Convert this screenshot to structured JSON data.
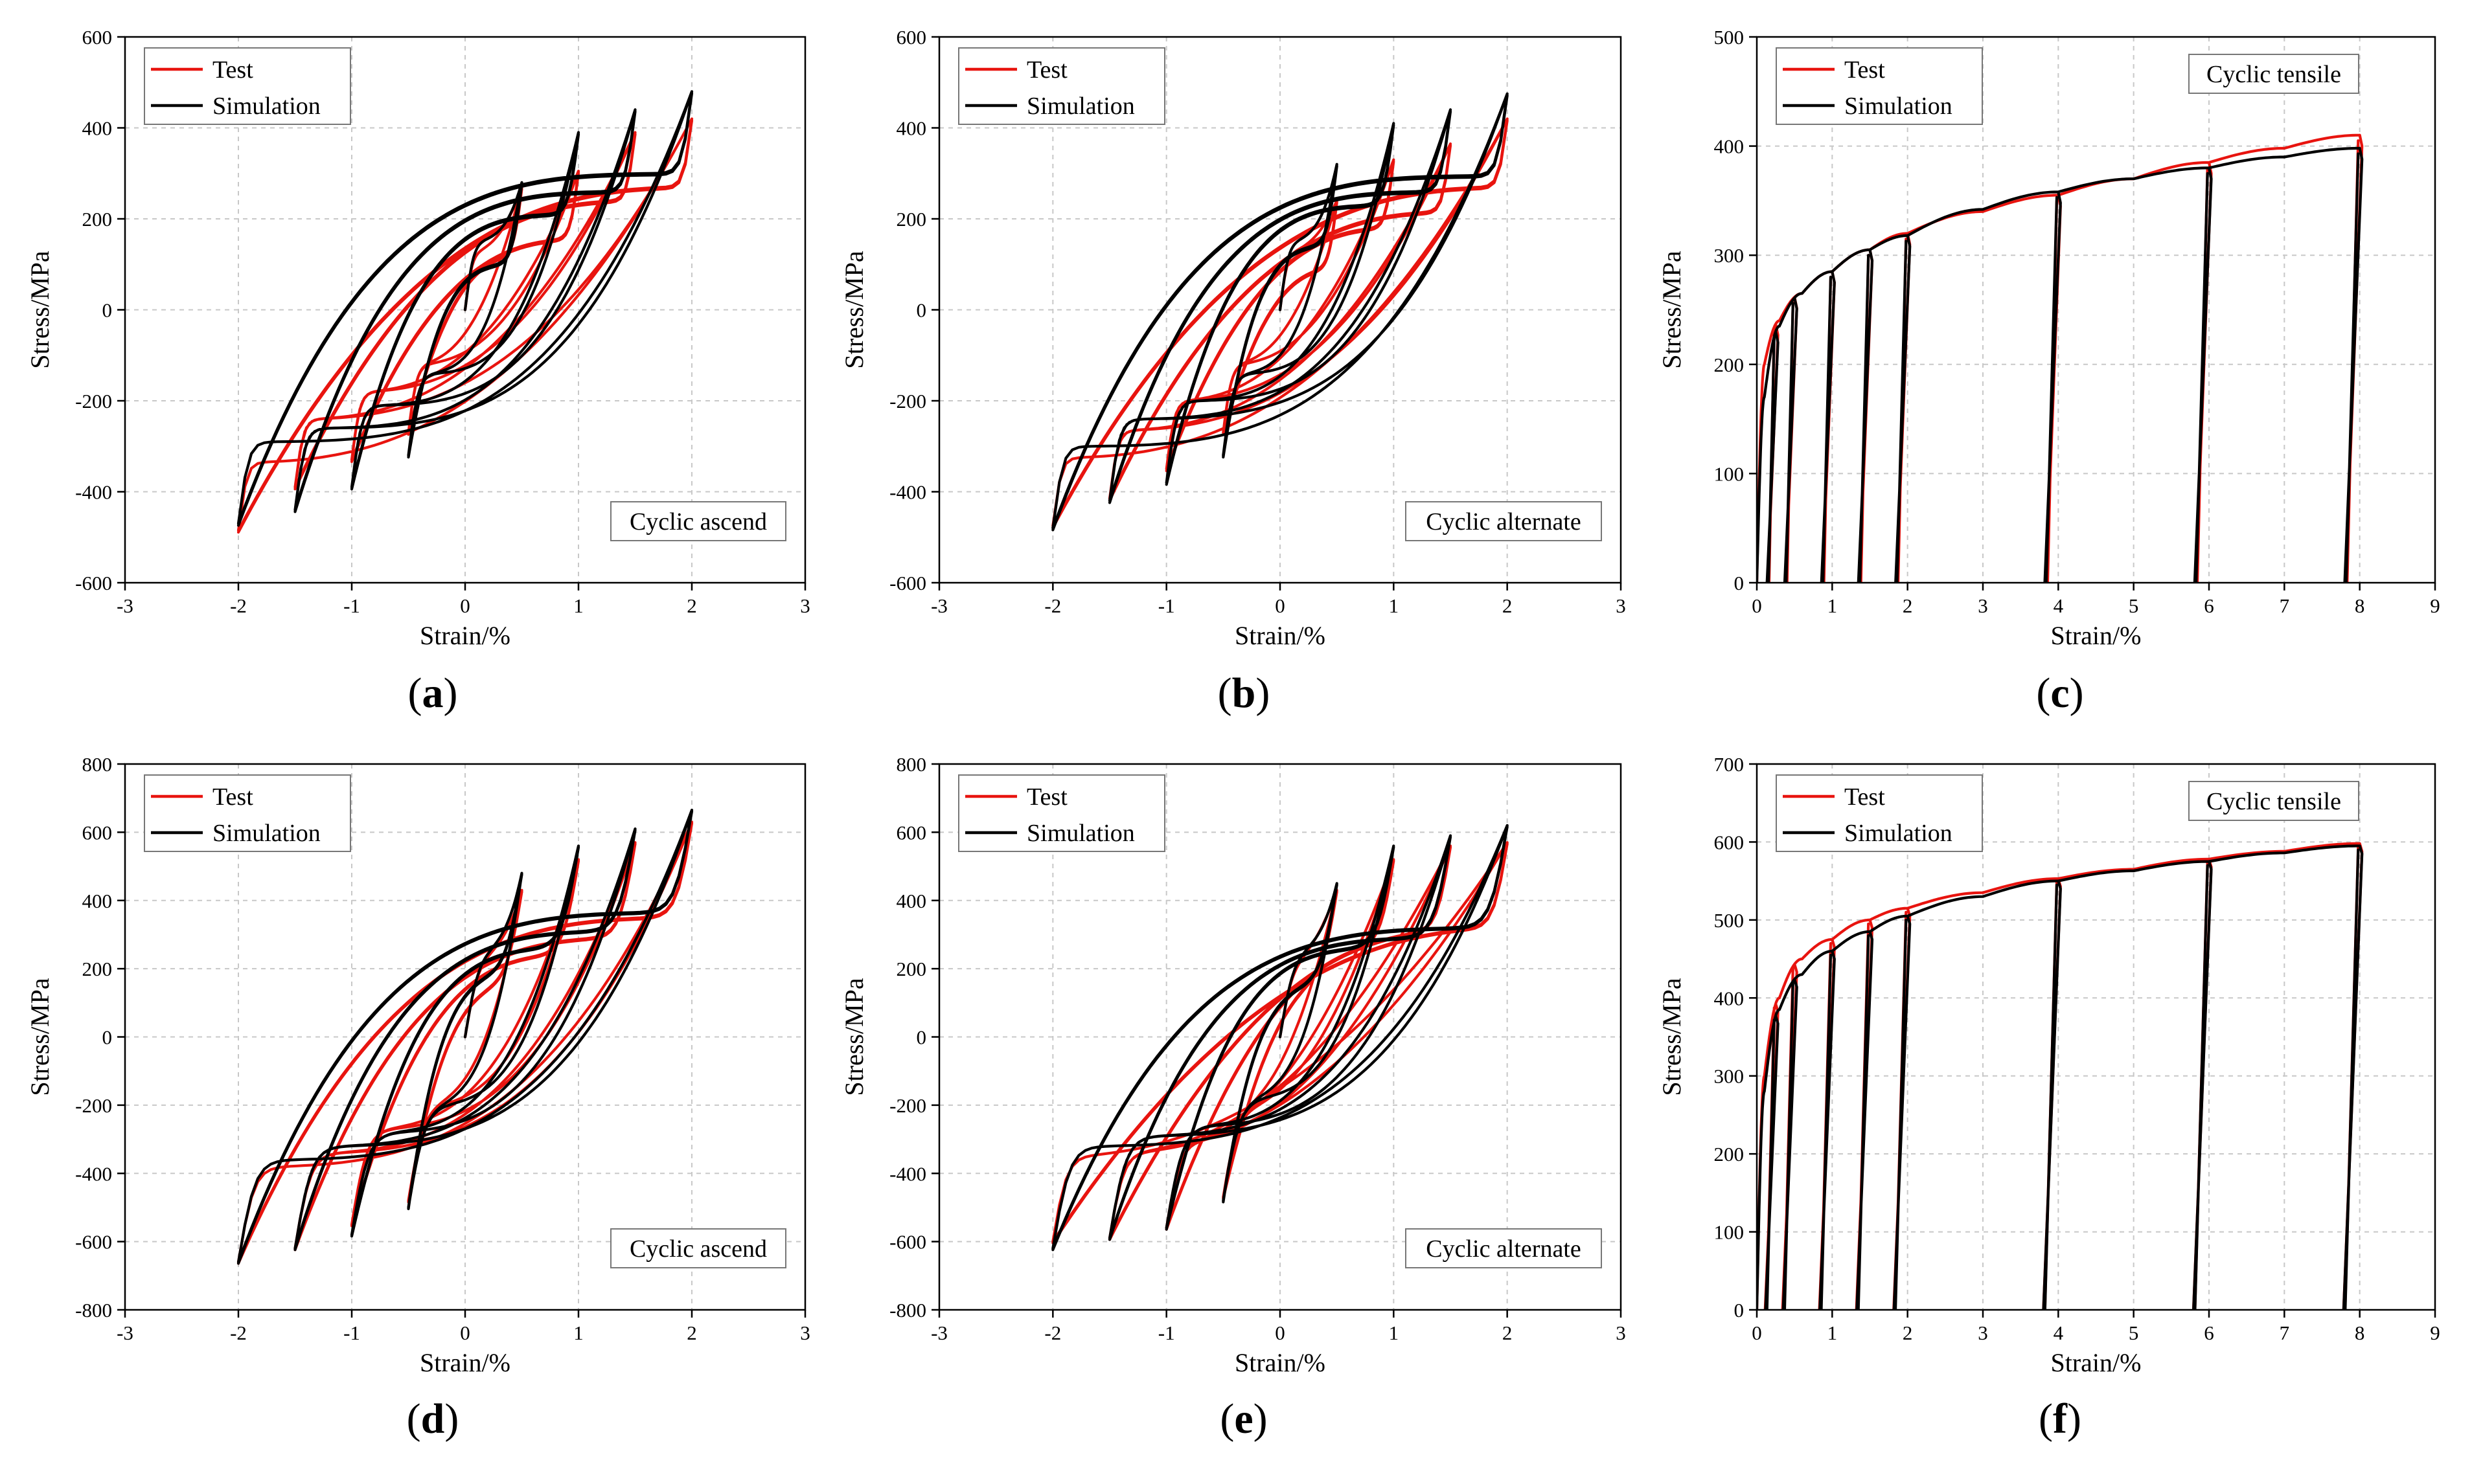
{
  "figure": {
    "colors": {
      "test": "#e8140f",
      "simulation": "#000000",
      "grid": "#c8c8c8",
      "axis": "#000000"
    }
  },
  "chart_data": [
    {
      "id": "a",
      "type": "line",
      "panel_label": "(a)",
      "xlabel": "Strain/%",
      "ylabel": "Stress/MPa",
      "xlim": [
        -3,
        3
      ],
      "ylim": [
        -600,
        600
      ],
      "xticks": [
        -3,
        -2,
        -1,
        0,
        1,
        2,
        3
      ],
      "yticks": [
        -600,
        -400,
        -200,
        0,
        200,
        400,
        600
      ],
      "annotation": "Cyclic ascend",
      "annotation_position": "bottom-right",
      "legend": [
        "Test",
        "Simulation"
      ],
      "legend_position": "top-left",
      "mode": "hysteresis",
      "series": [
        {
          "name": "Test",
          "amps": [
            0.5,
            1.0,
            1.5,
            2.0
          ],
          "peaks": [
            270,
            305,
            390,
            420
          ],
          "troughs": [
            -270,
            -330,
            -390,
            -485
          ],
          "yield": 150,
          "sharp": 2.5
        },
        {
          "name": "Simulation",
          "amps": [
            0.5,
            1.0,
            1.5,
            2.0
          ],
          "peaks": [
            280,
            390,
            440,
            480
          ],
          "troughs": [
            -320,
            -390,
            -440,
            -470
          ],
          "yield": 180,
          "sharp": 3.5
        }
      ]
    },
    {
      "id": "b",
      "type": "line",
      "panel_label": "(b)",
      "xlabel": "Strain/%",
      "ylabel": "Stress/MPa",
      "xlim": [
        -3,
        3
      ],
      "ylim": [
        -600,
        600
      ],
      "xticks": [
        -3,
        -2,
        -1,
        0,
        1,
        2,
        3
      ],
      "yticks": [
        -600,
        -400,
        -200,
        0,
        200,
        400,
        600
      ],
      "annotation": "Cyclic alternate",
      "annotation_position": "bottom-right",
      "legend": [
        "Test",
        "Simulation"
      ],
      "legend_position": "top-left",
      "mode": "hysteresis",
      "series": [
        {
          "name": "Test",
          "amps": [
            0.5,
            1.0,
            1.5,
            2.0
          ],
          "peaks": [
            240,
            330,
            365,
            420
          ],
          "troughs": [
            -270,
            -350,
            -415,
            -475
          ],
          "yield": 150,
          "sharp": 2.5
        },
        {
          "name": "Simulation",
          "amps": [
            0.5,
            1.0,
            1.5,
            2.0
          ],
          "peaks": [
            320,
            410,
            440,
            475
          ],
          "troughs": [
            -320,
            -380,
            -420,
            -480
          ],
          "yield": 180,
          "sharp": 3.5
        }
      ]
    },
    {
      "id": "c",
      "type": "line",
      "panel_label": "(c)",
      "xlabel": "Strain/%",
      "ylabel": "Stress/MPa",
      "xlim": [
        0,
        9
      ],
      "ylim": [
        0,
        500
      ],
      "xticks": [
        0,
        1,
        2,
        3,
        4,
        5,
        6,
        7,
        8,
        9
      ],
      "yticks": [
        0,
        100,
        200,
        300,
        400,
        500
      ],
      "annotation": "Cyclic tensile",
      "annotation_position": "top-right",
      "legend": [
        "Test",
        "Simulation"
      ],
      "legend_position": "top-left",
      "mode": "tensile",
      "series": [
        {
          "name": "Test",
          "unload_strains": [
            0.25,
            0.5,
            1.0,
            1.5,
            2.0,
            4.0,
            6.0,
            8.0
          ],
          "envelope": [
            [
              0,
              0
            ],
            [
              0.1,
              200
            ],
            [
              0.3,
              240
            ],
            [
              0.6,
              265
            ],
            [
              1.0,
              285
            ],
            [
              1.5,
              305
            ],
            [
              2.0,
              320
            ],
            [
              3.0,
              340
            ],
            [
              4.0,
              355
            ],
            [
              5.0,
              370
            ],
            [
              6.0,
              385
            ],
            [
              7.0,
              398
            ],
            [
              8.0,
              410
            ]
          ],
          "unload_stiffness": 2200
        },
        {
          "name": "Simulation",
          "unload_strains": [
            0.25,
            0.5,
            1.0,
            1.5,
            2.0,
            4.0,
            6.0,
            8.0
          ],
          "envelope": [
            [
              0,
              0
            ],
            [
              0.1,
              170
            ],
            [
              0.3,
              235
            ],
            [
              0.6,
              265
            ],
            [
              1.0,
              285
            ],
            [
              1.5,
              305
            ],
            [
              2.0,
              318
            ],
            [
              3.0,
              342
            ],
            [
              4.0,
              358
            ],
            [
              5.0,
              370
            ],
            [
              6.0,
              380
            ],
            [
              7.0,
              390
            ],
            [
              8.0,
              398
            ]
          ],
          "unload_stiffness": 2000
        }
      ]
    },
    {
      "id": "d",
      "type": "line",
      "panel_label": "(d)",
      "xlabel": "Strain/%",
      "ylabel": "Stress/MPa",
      "xlim": [
        -3,
        3
      ],
      "ylim": [
        -800,
        800
      ],
      "xticks": [
        -3,
        -2,
        -1,
        0,
        1,
        2,
        3
      ],
      "yticks": [
        -800,
        -600,
        -400,
        -200,
        0,
        200,
        400,
        600,
        800
      ],
      "annotation": "Cyclic ascend",
      "annotation_position": "bottom-right",
      "legend": [
        "Test",
        "Simulation"
      ],
      "legend_position": "top-left",
      "mode": "hysteresis",
      "series": [
        {
          "name": "Test",
          "amps": [
            0.5,
            1.0,
            1.5,
            2.0
          ],
          "peaks": [
            430,
            520,
            570,
            630
          ],
          "troughs": [
            -480,
            -550,
            -620,
            -660
          ],
          "yield": 280,
          "sharp": 3.0
        },
        {
          "name": "Simulation",
          "amps": [
            0.5,
            1.0,
            1.5,
            2.0
          ],
          "peaks": [
            480,
            560,
            610,
            665
          ],
          "troughs": [
            -500,
            -580,
            -620,
            -660
          ],
          "yield": 300,
          "sharp": 3.5
        }
      ]
    },
    {
      "id": "e",
      "type": "line",
      "panel_label": "(e)",
      "xlabel": "Strain/%",
      "ylabel": "Stress/MPa",
      "xlim": [
        -3,
        3
      ],
      "ylim": [
        -800,
        800
      ],
      "xticks": [
        -3,
        -2,
        -1,
        0,
        1,
        2,
        3
      ],
      "yticks": [
        -800,
        -600,
        -400,
        -200,
        0,
        200,
        400,
        600,
        800
      ],
      "annotation": "Cyclic alternate",
      "annotation_position": "bottom-right",
      "legend": [
        "Test",
        "Simulation"
      ],
      "legend_position": "top-left",
      "mode": "hysteresis",
      "series": [
        {
          "name": "Test",
          "amps": [
            0.5,
            1.0,
            1.5,
            2.0
          ],
          "peaks": [
            430,
            520,
            560,
            570
          ],
          "troughs": [
            -470,
            -560,
            -590,
            -600
          ],
          "yield": 250,
          "sharp": 2.2
        },
        {
          "name": "Simulation",
          "amps": [
            0.5,
            1.0,
            1.5,
            2.0
          ],
          "peaks": [
            450,
            560,
            590,
            620
          ],
          "troughs": [
            -480,
            -560,
            -590,
            -620
          ],
          "yield": 300,
          "sharp": 3.5
        }
      ]
    },
    {
      "id": "f",
      "type": "line",
      "panel_label": "(f)",
      "xlabel": "Strain/%",
      "ylabel": "Stress/MPa",
      "xlim": [
        0,
        9
      ],
      "ylim": [
        0,
        700
      ],
      "xticks": [
        0,
        1,
        2,
        3,
        4,
        5,
        6,
        7,
        8,
        9
      ],
      "yticks": [
        0,
        100,
        200,
        300,
        400,
        500,
        600,
        700
      ],
      "annotation": "Cyclic tensile",
      "annotation_position": "top-right",
      "legend": [
        "Test",
        "Simulation"
      ],
      "legend_position": "top-left",
      "mode": "tensile",
      "series": [
        {
          "name": "Test",
          "unload_strains": [
            0.25,
            0.5,
            1.0,
            1.5,
            2.0,
            4.0,
            6.0,
            8.0
          ],
          "envelope": [
            [
              0,
              0
            ],
            [
              0.1,
              300
            ],
            [
              0.3,
              400
            ],
            [
              0.6,
              450
            ],
            [
              1.0,
              475
            ],
            [
              1.5,
              500
            ],
            [
              2.0,
              515
            ],
            [
              3.0,
              535
            ],
            [
              4.0,
              553
            ],
            [
              5.0,
              565
            ],
            [
              6.0,
              578
            ],
            [
              7.0,
              588
            ],
            [
              8.0,
              598
            ]
          ],
          "unload_stiffness": 2800
        },
        {
          "name": "Simulation",
          "unload_strains": [
            0.25,
            0.5,
            1.0,
            1.5,
            2.0,
            4.0,
            6.0,
            8.0
          ],
          "envelope": [
            [
              0,
              0
            ],
            [
              0.1,
              280
            ],
            [
              0.3,
              385
            ],
            [
              0.6,
              430
            ],
            [
              1.0,
              460
            ],
            [
              1.5,
              485
            ],
            [
              2.0,
              505
            ],
            [
              3.0,
              530
            ],
            [
              4.0,
              550
            ],
            [
              5.0,
              563
            ],
            [
              6.0,
              575
            ],
            [
              7.0,
              586
            ],
            [
              8.0,
              595
            ]
          ],
          "unload_stiffness": 2800
        }
      ]
    }
  ]
}
